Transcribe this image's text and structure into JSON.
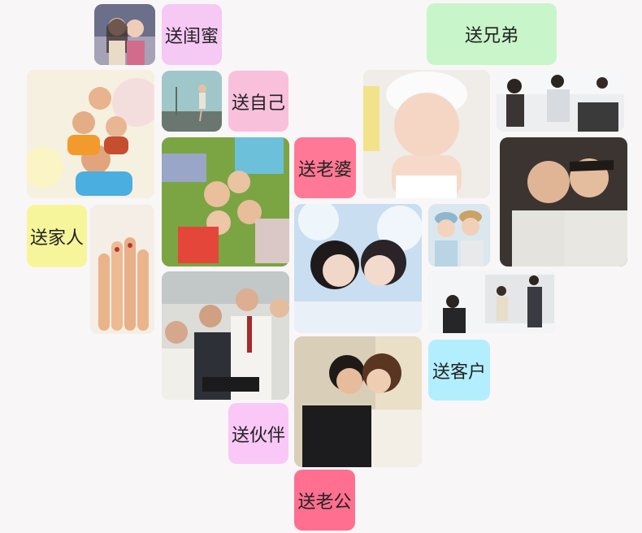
{
  "categories": {
    "guimi": "送闺蜜",
    "xiongdi": "送兄弟",
    "ziji": "送自己",
    "laopo": "送老婆",
    "jiaren": "送家人",
    "kehu": "送客户",
    "huoban": "送伙伴",
    "laogong": "送老公"
  },
  "colors": {
    "background": "#f9f6f8",
    "guimi": "#f6c8f4",
    "xiongdi": "#c8f5c9",
    "ziji": "#f9c0dc",
    "laopo": "#ff7895",
    "jiaren": "#f7f59a",
    "kehu": "#b3eefe",
    "huoban": "#f9c8f7",
    "laogong": "#ff6f90"
  }
}
